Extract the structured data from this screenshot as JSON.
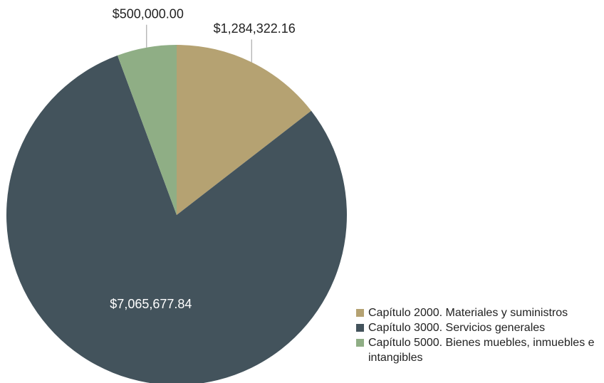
{
  "chart_data": {
    "type": "pie",
    "categories": [
      "Capítulo 2000. Materiales y suministros",
      "Capítulo 3000. Servicios generales",
      "Capítulo 5000. Bienes muebles, inmuebles e intangibles"
    ],
    "values": [
      1284322.16,
      7065677.84,
      500000
    ],
    "value_labels": [
      "$1,284,322.16",
      "$7,065,677.84",
      "$500,000.00"
    ],
    "colors": [
      "#b5a272",
      "#43535c",
      "#8fae85"
    ],
    "legend": "bottom-right"
  }
}
